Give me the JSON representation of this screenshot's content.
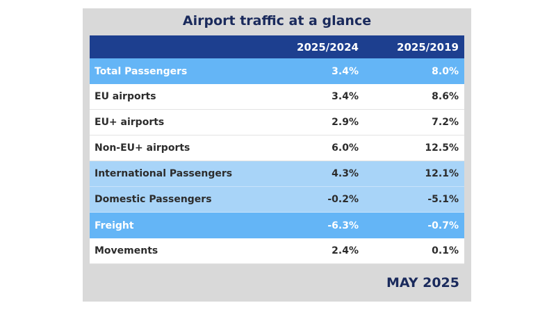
{
  "title": "Airport traffic at a glance",
  "header": {
    "label": "",
    "col1": "2025/2024",
    "col2": "2025/2019"
  },
  "rows": [
    {
      "label": "Total Passengers",
      "col1": "3.4%",
      "col2": "8.0%",
      "style": "highlight"
    },
    {
      "label": "EU airports",
      "col1": "3.4%",
      "col2": "8.6%",
      "style": "plain"
    },
    {
      "label": "EU+ airports",
      "col1": "2.9%",
      "col2": "7.2%",
      "style": "plain"
    },
    {
      "label": "Non-EU+ airports",
      "col1": "6.0%",
      "col2": "12.5%",
      "style": "plain"
    },
    {
      "label": "International Passengers",
      "col1": "4.3%",
      "col2": "12.1%",
      "style": "light"
    },
    {
      "label": "Domestic Passengers",
      "col1": "-0.2%",
      "col2": "-5.1%",
      "style": "light"
    },
    {
      "label": "Freight",
      "col1": "-6.3%",
      "col2": "-0.7%",
      "style": "highlight"
    },
    {
      "label": "Movements",
      "col1": "2.4%",
      "col2": "0.1%",
      "style": "plain"
    }
  ],
  "footer": "MAY 2025",
  "colors": {
    "header_bg": "#1d3f8f",
    "highlight_bg": "#64b5f6",
    "light_bg": "#a8d4f8",
    "title_color": "#1a2a5c"
  }
}
